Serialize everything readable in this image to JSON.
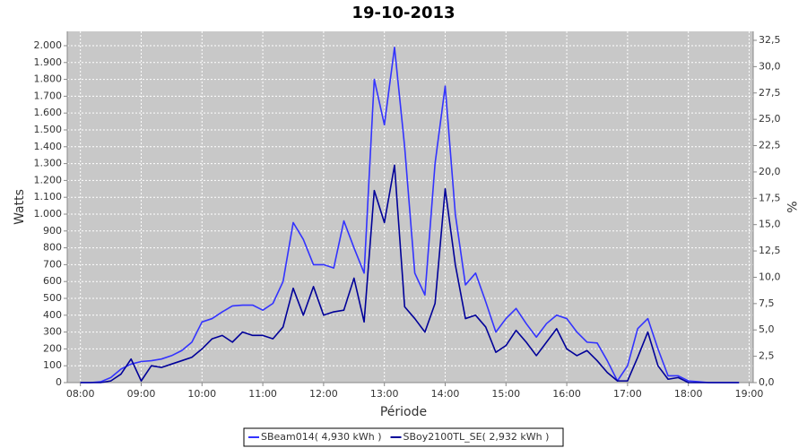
{
  "chart_data": {
    "type": "line",
    "title": "19-10-2013",
    "xlabel": "Période",
    "ylabel": "Watts",
    "y2label": "%",
    "x": [
      "08:00",
      "08:10",
      "08:20",
      "08:30",
      "08:40",
      "08:50",
      "09:00",
      "09:10",
      "09:20",
      "09:30",
      "09:40",
      "09:50",
      "10:00",
      "10:10",
      "10:20",
      "10:30",
      "10:40",
      "10:50",
      "11:00",
      "11:10",
      "11:20",
      "11:30",
      "11:40",
      "11:50",
      "12:00",
      "12:10",
      "12:20",
      "12:30",
      "12:40",
      "12:50",
      "13:00",
      "13:10",
      "13:20",
      "13:30",
      "13:40",
      "13:50",
      "14:00",
      "14:10",
      "14:20",
      "14:30",
      "14:40",
      "14:50",
      "15:00",
      "15:10",
      "15:20",
      "15:30",
      "15:40",
      "15:50",
      "16:00",
      "16:10",
      "16:20",
      "16:30",
      "16:40",
      "16:50",
      "17:00",
      "17:10",
      "17:20",
      "17:30",
      "17:40",
      "17:50",
      "18:00",
      "18:10",
      "18:20",
      "18:30",
      "18:40",
      "18:50"
    ],
    "series": [
      {
        "name": "SBeam014( 4,930 kWh )",
        "color": "#3333ff",
        "values": [
          0,
          0,
          5,
          30,
          80,
          110,
          125,
          130,
          140,
          160,
          190,
          240,
          360,
          380,
          420,
          455,
          460,
          460,
          430,
          470,
          600,
          950,
          850,
          700,
          700,
          680,
          960,
          800,
          650,
          1800,
          1530,
          1990,
          1400,
          650,
          520,
          1300,
          1760,
          1000,
          580,
          650,
          480,
          300,
          380,
          440,
          350,
          270,
          350,
          400,
          380,
          300,
          240,
          235,
          130,
          10,
          100,
          320,
          380,
          200,
          40,
          40,
          10,
          5,
          0,
          0,
          0,
          0
        ]
      },
      {
        "name": "SBoy2100TL_SE( 2,932 kWh )",
        "color": "#000099",
        "values": [
          0,
          0,
          0,
          10,
          50,
          140,
          10,
          100,
          90,
          110,
          130,
          150,
          200,
          260,
          280,
          240,
          300,
          280,
          280,
          260,
          330,
          560,
          400,
          570,
          400,
          420,
          430,
          620,
          360,
          1140,
          950,
          1290,
          450,
          380,
          300,
          470,
          1150,
          700,
          380,
          400,
          330,
          180,
          220,
          310,
          240,
          160,
          240,
          320,
          200,
          160,
          190,
          130,
          60,
          10,
          10,
          150,
          300,
          100,
          20,
          30,
          0,
          0,
          0,
          0,
          0,
          0
        ]
      }
    ],
    "xlim": [
      "07:47",
      "19:04"
    ],
    "xticks": [
      "08:00",
      "09:00",
      "10:00",
      "11:00",
      "12:00",
      "13:00",
      "14:00",
      "15:00",
      "16:00",
      "17:00",
      "18:00",
      "19:00"
    ],
    "ylim": [
      0,
      2085
    ],
    "yticks": [
      0,
      100,
      200,
      300,
      400,
      500,
      600,
      700,
      800,
      900,
      {
        "value": 1000,
        "label": "1.000"
      },
      {
        "value": 1100,
        "label": "1.100"
      },
      {
        "value": 1200,
        "label": "1.200"
      },
      {
        "value": 1300,
        "label": "1.300"
      },
      {
        "value": 1400,
        "label": "1.400"
      },
      {
        "value": 1500,
        "label": "1.500"
      },
      {
        "value": 1600,
        "label": "1.600"
      },
      {
        "value": 1700,
        "label": "1.700"
      },
      {
        "value": 1800,
        "label": "1.800"
      },
      {
        "value": 1900,
        "label": "1.900"
      },
      {
        "value": 2000,
        "label": "2.000"
      }
    ],
    "y2lim": [
      0,
      33.35
    ],
    "y2ticks": [
      {
        "value": 0,
        "label": "0,0"
      },
      {
        "value": 2.5,
        "label": "2,5"
      },
      {
        "value": 5,
        "label": "5,0"
      },
      {
        "value": 7.5,
        "label": "7,5"
      },
      {
        "value": 10,
        "label": "10,0"
      },
      {
        "value": 12.5,
        "label": "12,5"
      },
      {
        "value": 15,
        "label": "15,0"
      },
      {
        "value": 17.5,
        "label": "17,5"
      },
      {
        "value": 20,
        "label": "20,0"
      },
      {
        "value": 22.5,
        "label": "22,5"
      },
      {
        "value": 25,
        "label": "25,0"
      },
      {
        "value": 27.5,
        "label": "27,5"
      },
      {
        "value": 30,
        "label": "30,0"
      },
      {
        "value": 32.5,
        "label": "32,5"
      }
    ],
    "grid": true,
    "legend": "bottom"
  }
}
